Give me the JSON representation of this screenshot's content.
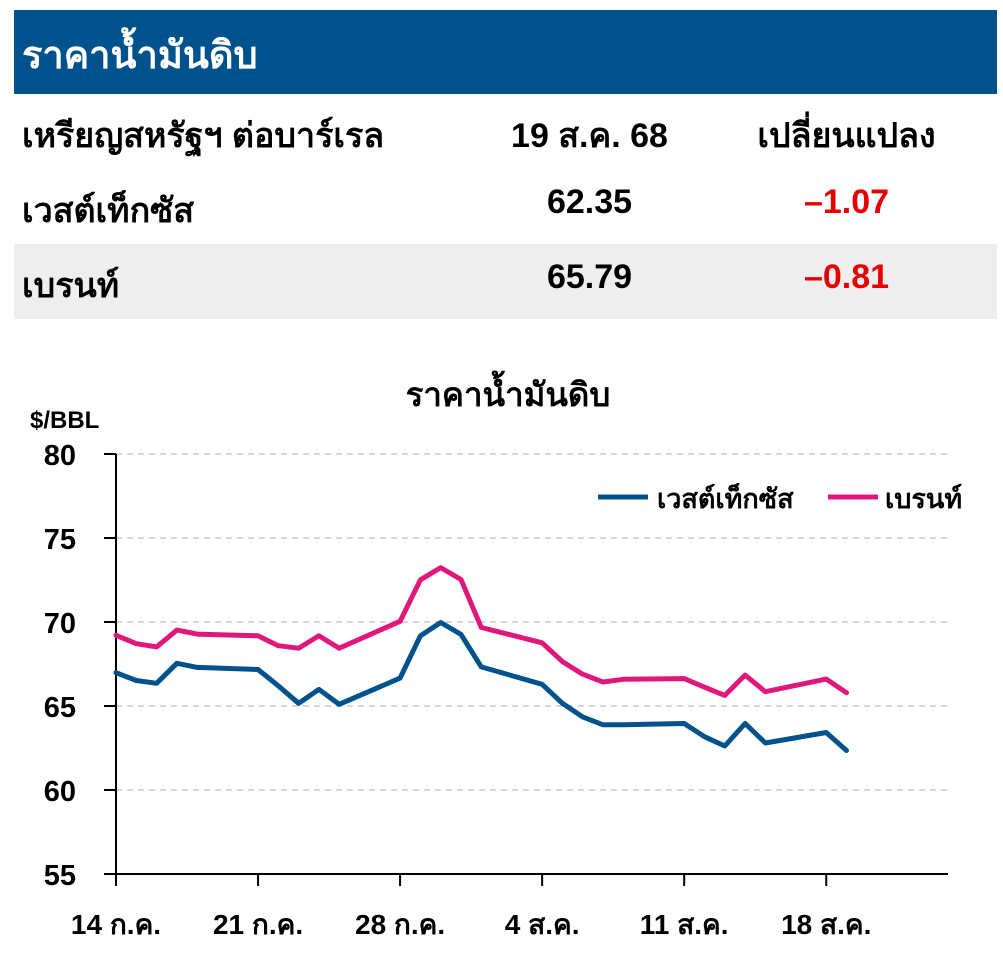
{
  "header": {
    "title": "ราคาน้ำมันดิบ"
  },
  "table": {
    "columns": [
      "เหรียญสหรัฐฯ ต่อบาร์เรล",
      "19 ส.ค. 68",
      "เปลี่ยนแปลง"
    ],
    "rows": [
      {
        "name": "เวสต์เท็กซัส",
        "price": "62.35",
        "change": "–1.07"
      },
      {
        "name": "เบรนท์",
        "price": "65.79",
        "change": "–0.81"
      }
    ]
  },
  "colors": {
    "header_bg": "#00528c",
    "negative": "#e60000",
    "wti": "#00528c",
    "brent": "#e0187c",
    "row_shade": "#eeeeee"
  },
  "chart_data": {
    "type": "line",
    "title": "ราคาน้ำมันดิบ",
    "ylabel": "$/BBL",
    "ylim": [
      55,
      80
    ],
    "yticks": [
      55,
      60,
      65,
      70,
      75,
      80
    ],
    "grid": true,
    "legend_position": "top-right",
    "x_tick_labels": [
      {
        "day": 0,
        "label": "14 ก.ค."
      },
      {
        "day": 7,
        "label": "21 ก.ค."
      },
      {
        "day": 14,
        "label": "28 ก.ค."
      },
      {
        "day": 21,
        "label": "4 ส.ค."
      },
      {
        "day": 28,
        "label": "11 ส.ค."
      },
      {
        "day": 35,
        "label": "18 ส.ค."
      }
    ],
    "series": [
      {
        "name": "เวสต์เท็กซัส",
        "color": "#00528c",
        "x": [
          0,
          1,
          2,
          3,
          4,
          7,
          8,
          9,
          10,
          11,
          14,
          15,
          16,
          17,
          18,
          21,
          22,
          23,
          24,
          25,
          28,
          29,
          30,
          31,
          32,
          35,
          36
        ],
        "values": [
          66.98,
          66.52,
          66.35,
          67.54,
          67.3,
          67.17,
          66.2,
          65.16,
          65.99,
          65.1,
          66.66,
          69.18,
          69.97,
          69.26,
          67.33,
          66.29,
          65.16,
          64.35,
          63.88,
          63.88,
          63.96,
          63.17,
          62.62,
          63.96,
          62.8,
          63.42,
          62.35
        ]
      },
      {
        "name": "เบรนท์",
        "color": "#e0187c",
        "x": [
          0,
          1,
          2,
          3,
          4,
          7,
          8,
          9,
          10,
          11,
          14,
          15,
          16,
          17,
          18,
          21,
          22,
          23,
          24,
          25,
          28,
          29,
          30,
          31,
          32,
          35,
          36
        ],
        "values": [
          69.21,
          68.71,
          68.52,
          69.52,
          69.28,
          69.18,
          68.59,
          68.44,
          69.18,
          68.44,
          70.04,
          72.51,
          73.24,
          72.53,
          69.67,
          68.76,
          67.64,
          66.89,
          66.43,
          66.59,
          66.63,
          66.12,
          65.63,
          66.84,
          65.85,
          66.6,
          65.79
        ]
      }
    ]
  }
}
